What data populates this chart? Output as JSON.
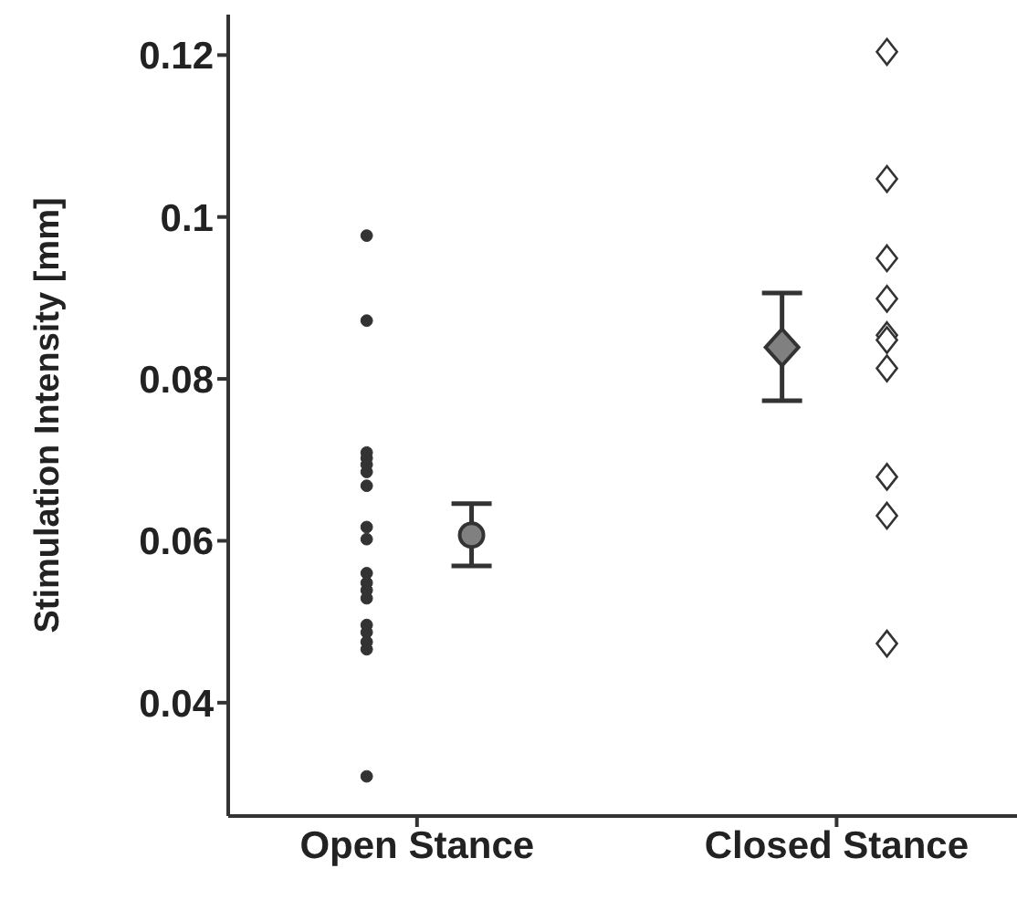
{
  "chart_data": {
    "type": "scatter",
    "ylabel": "Stimulation Intensity [mm]",
    "categories": [
      "Open Stance",
      "Closed Stance"
    ],
    "ylim": [
      0.026,
      0.125
    ],
    "yticks": [
      0.04,
      0.06,
      0.08,
      0.1,
      0.12
    ],
    "series": [
      {
        "color": "#333333",
        "marker": "circle",
        "x": [
          "Open Stance",
          "Open Stance",
          "Open Stance",
          "Open Stance",
          "Open Stance",
          "Open Stance",
          "Open Stance",
          "Open Stance",
          "Open Stance",
          "Open Stance",
          "Open Stance",
          "Open Stance",
          "Open Stance",
          "Open Stance",
          "Open Stance",
          "Open Stance",
          "Open Stance",
          "Open Stance"
        ],
        "values": [
          0.0977,
          0.0872,
          0.0709,
          0.0702,
          0.0694,
          0.0685,
          0.0668,
          0.0617,
          0.0602,
          0.056,
          0.0548,
          0.0539,
          0.0529,
          0.0496,
          0.0487,
          0.0475,
          0.0466,
          0.0309
        ]
      },
      {
        "color": "#808080",
        "marker": "circle",
        "x": [
          "Open Stance"
        ],
        "values": [
          0.0607
        ],
        "errors": [
          [
            0.0569,
            0.0646
          ]
        ]
      },
      {
        "color": "#808080",
        "marker": "diamond",
        "x": [
          "Closed Stance"
        ],
        "values": [
          0.0839
        ],
        "errors": [
          [
            0.0773,
            0.0906
          ]
        ]
      },
      {
        "color": "#ffffff",
        "marker": "diamond",
        "x": [
          "Closed Stance",
          "Closed Stance",
          "Closed Stance",
          "Closed Stance",
          "Closed Stance",
          "Closed Stance",
          "Closed Stance",
          "Closed Stance",
          "Closed Stance",
          "Closed Stance"
        ],
        "values": [
          0.1204,
          0.1047,
          0.0949,
          0.0899,
          0.0854,
          0.0848,
          0.0813,
          0.0679,
          0.0631,
          0.0473
        ]
      }
    ]
  }
}
